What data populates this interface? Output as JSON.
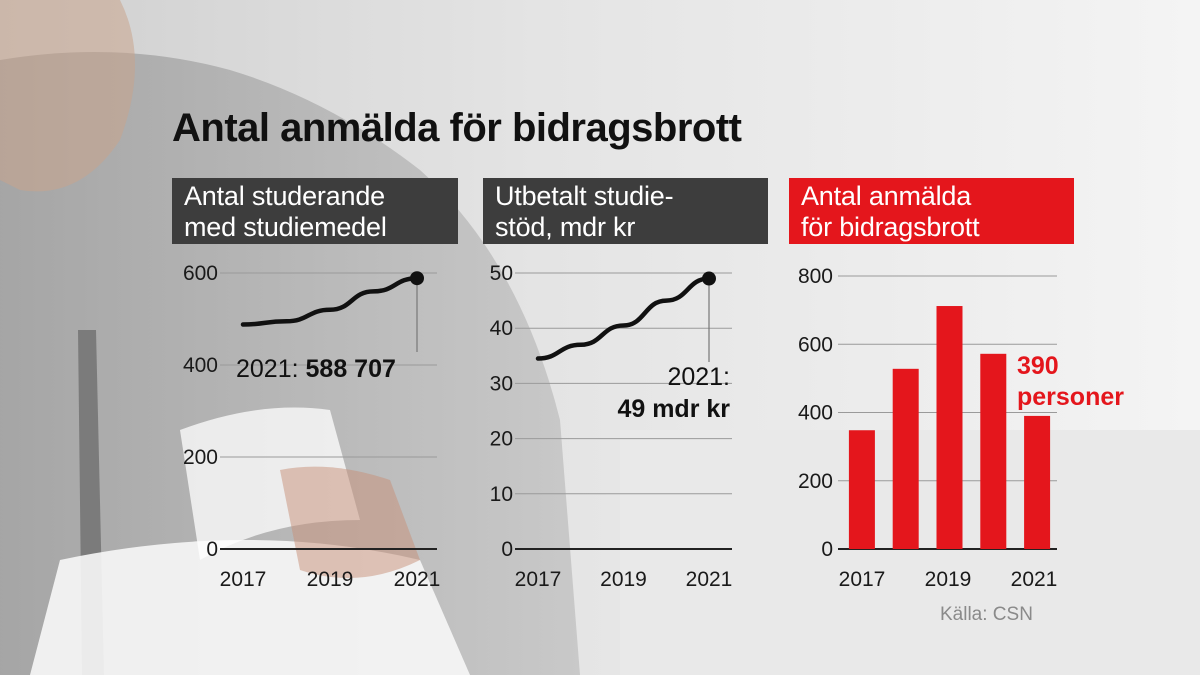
{
  "title": "Antal anmälda för bidragsbrott",
  "source": "Källa: CSN",
  "colors": {
    "panel_dark": "#3d3d3d",
    "accent_red": "#e4161c",
    "line": "#111111"
  },
  "chart_data": [
    {
      "type": "line",
      "title": "Antal studerande\nmed studiemedel",
      "x": [
        2017,
        2018,
        2019,
        2020,
        2021
      ],
      "x_tick_labels": [
        "2017",
        "2019",
        "2021"
      ],
      "values": [
        488000,
        495000,
        520000,
        560000,
        588707
      ],
      "ylim": [
        0,
        600
      ],
      "y_unit_divisor": 1000,
      "y_ticks": [
        0,
        200,
        400,
        600
      ],
      "grid": true,
      "annotation": {
        "prefix": "2021: ",
        "value": "588 707"
      }
    },
    {
      "type": "line",
      "title": "Utbetalt studie-\nstöd, mdr kr",
      "x": [
        2017,
        2018,
        2019,
        2020,
        2021
      ],
      "x_tick_labels": [
        "2017",
        "2019",
        "2021"
      ],
      "values": [
        34.5,
        37,
        40.5,
        45,
        49
      ],
      "ylim": [
        0,
        50
      ],
      "y_ticks": [
        0,
        10,
        20,
        30,
        40,
        50
      ],
      "grid": true,
      "annotation": {
        "prefix": "2021:",
        "value": "49 mdr kr"
      }
    },
    {
      "type": "bar",
      "title": "Antal anmälda\nför bidragsbrott",
      "x": [
        2017,
        2018,
        2019,
        2020,
        2021
      ],
      "x_tick_labels": [
        "2017",
        "2019",
        "2021"
      ],
      "values": [
        348,
        528,
        712,
        572,
        390
      ],
      "ylim": [
        0,
        800
      ],
      "y_ticks": [
        0,
        200,
        400,
        600,
        800
      ],
      "grid": true,
      "annotation": {
        "line1": "390",
        "line2": "personer"
      }
    }
  ]
}
